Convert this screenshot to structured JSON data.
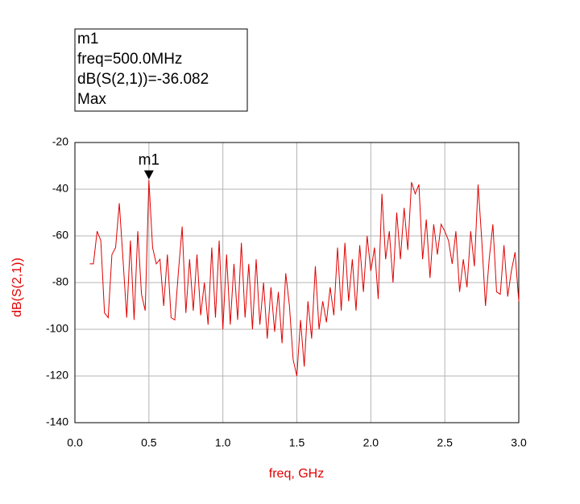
{
  "chart_data": {
    "type": "line",
    "xlabel": "freq, GHz",
    "ylabel": "dB(S(2,1))",
    "marker": {
      "name": "m1",
      "lines": [
        "m1",
        "freq=500.0MHz",
        "dB(S(2,1))=-36.082",
        "Max"
      ],
      "x": 0.5,
      "y": -36.082
    },
    "x": [
      0.1,
      0.125,
      0.15,
      0.175,
      0.2,
      0.225,
      0.25,
      0.275,
      0.3,
      0.325,
      0.35,
      0.375,
      0.4,
      0.425,
      0.45,
      0.475,
      0.5,
      0.525,
      0.55,
      0.575,
      0.6,
      0.625,
      0.65,
      0.675,
      0.7,
      0.725,
      0.75,
      0.775,
      0.8,
      0.825,
      0.85,
      0.875,
      0.9,
      0.925,
      0.95,
      0.975,
      1.0,
      1.025,
      1.05,
      1.075,
      1.1,
      1.125,
      1.15,
      1.175,
      1.2,
      1.225,
      1.25,
      1.275,
      1.3,
      1.325,
      1.35,
      1.375,
      1.4,
      1.425,
      1.45,
      1.475,
      1.5,
      1.525,
      1.55,
      1.575,
      1.6,
      1.625,
      1.65,
      1.675,
      1.7,
      1.725,
      1.75,
      1.775,
      1.8,
      1.825,
      1.85,
      1.875,
      1.9,
      1.925,
      1.95,
      1.975,
      2.0,
      2.025,
      2.05,
      2.075,
      2.1,
      2.125,
      2.15,
      2.175,
      2.2,
      2.225,
      2.25,
      2.275,
      2.3,
      2.325,
      2.35,
      2.375,
      2.4,
      2.425,
      2.45,
      2.475,
      2.5,
      2.525,
      2.55,
      2.575,
      2.6,
      2.625,
      2.65,
      2.675,
      2.7,
      2.725,
      2.75,
      2.775,
      2.8,
      2.825,
      2.85,
      2.875,
      2.9,
      2.925,
      2.95,
      2.975,
      3.0
    ],
    "series": [
      {
        "name": "dB(S(2,1))",
        "color": "#e00000",
        "values": [
          -72,
          -72,
          -58,
          -62,
          -93,
          -95,
          -68,
          -65,
          -46,
          -70,
          -95,
          -62,
          -96,
          -58,
          -85,
          -92,
          -36.082,
          -65,
          -72,
          -70,
          -90,
          -68,
          -95,
          -96,
          -75,
          -56,
          -93,
          -70,
          -92,
          -68,
          -94,
          -80,
          -98,
          -65,
          -95,
          -62,
          -100,
          -68,
          -98,
          -72,
          -96,
          -63,
          -95,
          -72,
          -100,
          -70,
          -98,
          -80,
          -104,
          -82,
          -101,
          -84,
          -106,
          -76,
          -90,
          -113,
          -120,
          -96,
          -116,
          -88,
          -104,
          -73,
          -100,
          -88,
          -97,
          -82,
          -94,
          -65,
          -92,
          -63,
          -88,
          -70,
          -92,
          -64,
          -84,
          -60,
          -75,
          -65,
          -87,
          -42,
          -70,
          -58,
          -80,
          -50,
          -70,
          -48,
          -66,
          -37,
          -42,
          -38,
          -70,
          -53,
          -78,
          -55,
          -68,
          -55,
          -58,
          -62,
          -72,
          -58,
          -84,
          -70,
          -82,
          -58,
          -73,
          -38,
          -62,
          -90,
          -70,
          -55,
          -84,
          -85,
          -64,
          -86,
          -75,
          -67,
          -88
        ]
      }
    ],
    "xlim": [
      0,
      3
    ],
    "ylim": [
      -140,
      -20
    ],
    "xticks": [
      {
        "value": 0,
        "label": "0.0"
      },
      0.5,
      {
        "value": 1,
        "label": "1.0"
      },
      1.5,
      {
        "value": 2,
        "label": "2.0"
      },
      2.5,
      {
        "value": 3,
        "label": "3.0"
      }
    ],
    "yticks": [
      -140,
      -120,
      -100,
      -80,
      -60,
      -40,
      -20
    ],
    "grid": true
  }
}
